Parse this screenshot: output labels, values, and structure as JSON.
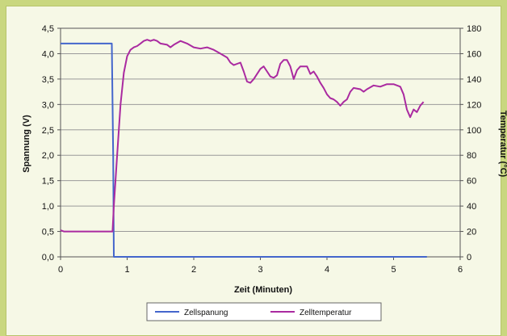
{
  "chart_data": {
    "type": "line",
    "xlabel": "Zeit (Minuten)",
    "ylabel": "Spannung (V)",
    "y2label": "Temperatur (°C)",
    "xlim": [
      0,
      6
    ],
    "ylim": [
      0,
      4.5
    ],
    "y2lim": [
      0,
      180
    ],
    "x_ticks": [
      0,
      1,
      2,
      3,
      4,
      5,
      6
    ],
    "y_ticks": [
      "0,0",
      "0,5",
      "1,0",
      "1,5",
      "2,0",
      "2,5",
      "3,0",
      "3,5",
      "4,0",
      "4,5"
    ],
    "y2_ticks": [
      "0",
      "20",
      "40",
      "60",
      "80",
      "100",
      "120",
      "140",
      "160",
      "180"
    ],
    "grid": "horizontal",
    "legend_position": "bottom",
    "series": [
      {
        "name": "Zellspanung",
        "axis": "left",
        "color": "#4466cc",
        "points": [
          [
            0,
            4.2
          ],
          [
            0.2,
            4.2
          ],
          [
            0.4,
            4.2
          ],
          [
            0.6,
            4.2
          ],
          [
            0.77,
            4.2
          ],
          [
            0.79,
            2.0
          ],
          [
            0.8,
            0.0
          ],
          [
            1.0,
            0.0
          ],
          [
            2.0,
            0.0
          ],
          [
            3.0,
            0.0
          ],
          [
            4.0,
            0.0
          ],
          [
            5.0,
            0.0
          ],
          [
            5.5,
            0.0
          ]
        ]
      },
      {
        "name": "Zelltemperatur",
        "axis": "right",
        "color": "#aa2aa0",
        "points": [
          [
            0,
            21
          ],
          [
            0.05,
            20
          ],
          [
            0.2,
            20
          ],
          [
            0.4,
            20
          ],
          [
            0.6,
            20
          ],
          [
            0.78,
            20
          ],
          [
            0.8,
            40
          ],
          [
            0.85,
            80
          ],
          [
            0.9,
            120
          ],
          [
            0.95,
            145
          ],
          [
            1.0,
            158
          ],
          [
            1.05,
            163
          ],
          [
            1.1,
            165
          ],
          [
            1.15,
            166
          ],
          [
            1.2,
            168
          ],
          [
            1.25,
            170
          ],
          [
            1.3,
            171
          ],
          [
            1.35,
            170
          ],
          [
            1.4,
            171
          ],
          [
            1.45,
            170
          ],
          [
            1.5,
            168
          ],
          [
            1.6,
            167
          ],
          [
            1.65,
            165
          ],
          [
            1.7,
            167
          ],
          [
            1.8,
            170
          ],
          [
            1.9,
            168
          ],
          [
            2.0,
            165
          ],
          [
            2.1,
            164
          ],
          [
            2.2,
            165
          ],
          [
            2.3,
            163
          ],
          [
            2.4,
            160
          ],
          [
            2.5,
            157
          ],
          [
            2.55,
            153
          ],
          [
            2.6,
            151
          ],
          [
            2.7,
            153
          ],
          [
            2.75,
            146
          ],
          [
            2.8,
            138
          ],
          [
            2.85,
            137
          ],
          [
            2.9,
            140
          ],
          [
            3.0,
            148
          ],
          [
            3.05,
            150
          ],
          [
            3.1,
            146
          ],
          [
            3.15,
            142
          ],
          [
            3.2,
            141
          ],
          [
            3.25,
            143
          ],
          [
            3.3,
            152
          ],
          [
            3.35,
            155
          ],
          [
            3.4,
            155
          ],
          [
            3.45,
            150
          ],
          [
            3.5,
            140
          ],
          [
            3.55,
            147
          ],
          [
            3.6,
            150
          ],
          [
            3.7,
            150
          ],
          [
            3.75,
            144
          ],
          [
            3.8,
            146
          ],
          [
            3.85,
            142
          ],
          [
            3.9,
            137
          ],
          [
            3.95,
            133
          ],
          [
            4.0,
            128
          ],
          [
            4.05,
            125
          ],
          [
            4.1,
            124
          ],
          [
            4.15,
            122
          ],
          [
            4.2,
            119
          ],
          [
            4.25,
            122
          ],
          [
            4.3,
            124
          ],
          [
            4.35,
            130
          ],
          [
            4.4,
            133
          ],
          [
            4.5,
            132
          ],
          [
            4.55,
            130
          ],
          [
            4.6,
            132
          ],
          [
            4.7,
            135
          ],
          [
            4.8,
            134
          ],
          [
            4.9,
            136
          ],
          [
            5.0,
            136
          ],
          [
            5.1,
            134
          ],
          [
            5.15,
            128
          ],
          [
            5.2,
            116
          ],
          [
            5.25,
            110
          ],
          [
            5.3,
            116
          ],
          [
            5.35,
            114
          ],
          [
            5.4,
            119
          ],
          [
            5.45,
            122
          ]
        ]
      }
    ]
  }
}
